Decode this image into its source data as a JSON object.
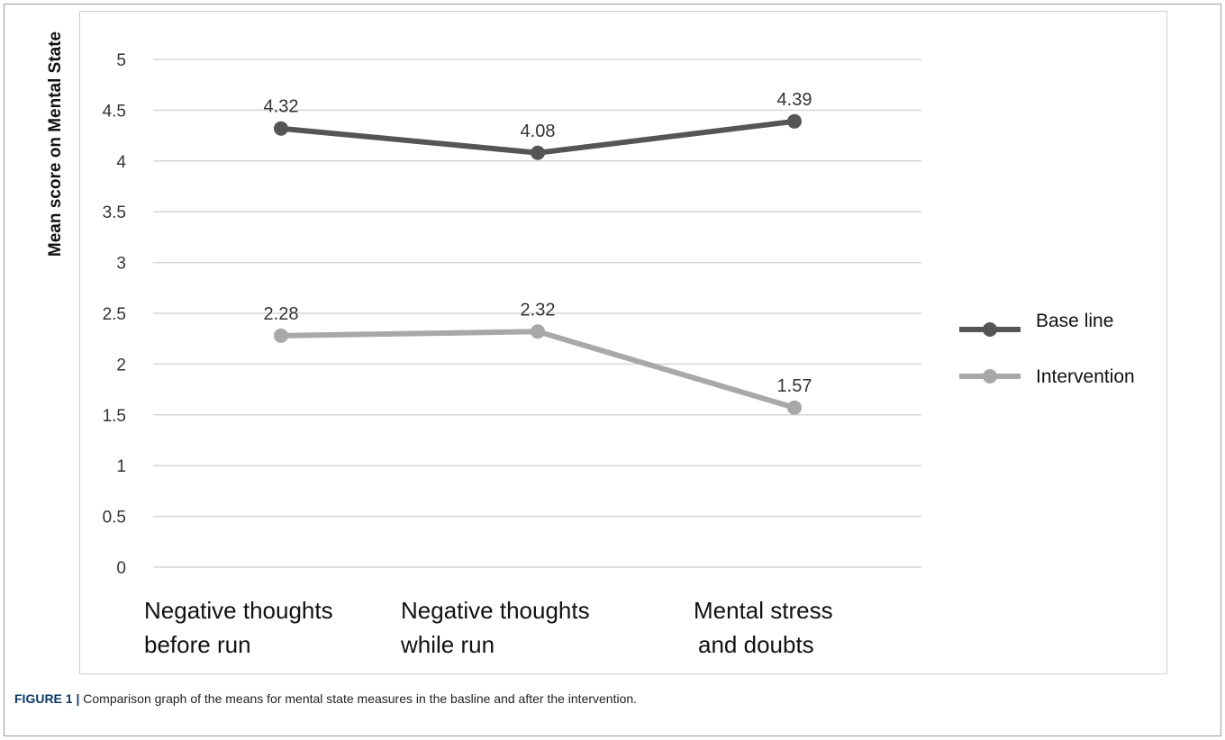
{
  "chart_data": {
    "type": "line",
    "categories": [
      [
        "Negative thoughts",
        "before run"
      ],
      [
        "Negative thoughts",
        "while run"
      ],
      [
        "Mental stress",
        "and doubts"
      ]
    ],
    "series": [
      {
        "name": "Base line",
        "values": [
          4.32,
          4.08,
          4.39
        ],
        "color": "#555555"
      },
      {
        "name": "Intervention",
        "values": [
          2.28,
          2.32,
          1.57
        ],
        "color": "#a8a8a8"
      }
    ],
    "ylabel": "Mean score on Mental State",
    "ylim": [
      0,
      5
    ],
    "yticks": [
      "0",
      "0.5",
      "1",
      "1.5",
      "2",
      "2.5",
      "3",
      "3.5",
      "4",
      "4.5",
      "5"
    ],
    "grid": true,
    "legend_position": "right",
    "data_labels": true
  },
  "caption": {
    "label": "FIGURE 1 |",
    "text": " Comparison graph of the means for mental state measures in the basline and after the intervention."
  }
}
